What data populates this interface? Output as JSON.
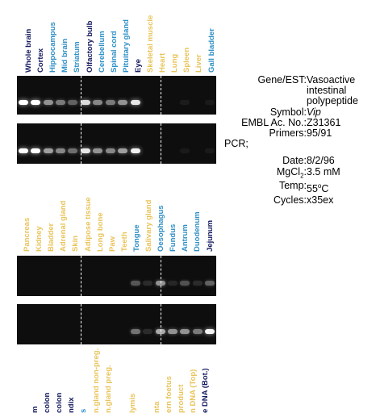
{
  "colors": {
    "dark_navy": "#141a5e",
    "teal": "#2d8fc6",
    "yellow": "#e9c45a",
    "green": "#37c455",
    "gel_bg": "#0e0e0e"
  },
  "top_lanes": [
    {
      "label": "Whole brain",
      "color": "#141a5e"
    },
    {
      "label": "Cortex",
      "color": "#141a5e"
    },
    {
      "label": "Hippocampus",
      "color": "#2d8fc6"
    },
    {
      "label": "Mid brain",
      "color": "#2d8fc6"
    },
    {
      "label": "Striatum",
      "color": "#2d8fc6"
    },
    {
      "label": "Olfactory bulb",
      "color": "#141a5e"
    },
    {
      "label": "Cerebellum",
      "color": "#2d8fc6"
    },
    {
      "label": "Spinal cord",
      "color": "#2d8fc6"
    },
    {
      "label": "Pituitary gland",
      "color": "#2d8fc6"
    },
    {
      "label": "Eye",
      "color": "#141a5e"
    },
    {
      "label": "Skeletal muscle",
      "color": "#e9c45a"
    },
    {
      "label": "Heart",
      "color": "#e9c45a"
    },
    {
      "label": "Lung",
      "color": "#e9c45a"
    },
    {
      "label": "Spleen",
      "color": "#e9c45a"
    },
    {
      "label": "Liver",
      "color": "#e9c45a"
    },
    {
      "label": "Gall bladder",
      "color": "#2d8fc6"
    }
  ],
  "middle_lanes": [
    {
      "label": "Pancreas",
      "color": "#e9c45a"
    },
    {
      "label": "Kidney",
      "color": "#e9c45a"
    },
    {
      "label": "Bladder",
      "color": "#e9c45a"
    },
    {
      "label": "Adrenal gland",
      "color": "#e9c45a"
    },
    {
      "label": "Skin",
      "color": "#e9c45a"
    },
    {
      "label": "Adipose tissue",
      "color": "#e9c45a"
    },
    {
      "label": "Long bone",
      "color": "#e9c45a"
    },
    {
      "label": "Paw",
      "color": "#e9c45a"
    },
    {
      "label": "Teeth",
      "color": "#e9c45a"
    },
    {
      "label": "Tongue",
      "color": "#2d8fc6"
    },
    {
      "label": "Salivary gland",
      "color": "#e9c45a"
    },
    {
      "label": "Oesophagus",
      "color": "#2d8fc6"
    },
    {
      "label": "Fundus",
      "color": "#2d8fc6"
    },
    {
      "label": "Antrum",
      "color": "#2d8fc6"
    },
    {
      "label": "Duodenum",
      "color": "#2d8fc6"
    },
    {
      "label": "Jejunum",
      "color": "#141a5e"
    }
  ],
  "bottom_lanes": [
    {
      "label": "m",
      "color": "#141a5e"
    },
    {
      "label": "colon",
      "color": "#141a5e"
    },
    {
      "label": "colon",
      "color": "#141a5e"
    },
    {
      "label": "ndix",
      "color": "#141a5e"
    },
    {
      "label": "s",
      "color": "#2d8fc6"
    },
    {
      "label": "n.gland non-preg.",
      "color": "#e9c45a"
    },
    {
      "label": "n.gland preg.",
      "color": "#e9c45a"
    },
    {
      "label": "",
      "color": "#e9c45a"
    },
    {
      "label": "lymis",
      "color": "#e9c45a"
    },
    {
      "label": "",
      "color": "#37c455"
    },
    {
      "label": "nta",
      "color": "#e9c45a"
    },
    {
      "label": "ern foetus",
      "color": "#e9c45a"
    },
    {
      "label": "product",
      "color": "#e9c45a"
    },
    {
      "label": "n DNA (Top)",
      "color": "#e9c45a"
    },
    {
      "label": "e DNA (Bot.)",
      "color": "#141a5e"
    }
  ],
  "gels": {
    "top1": [
      1.0,
      1.0,
      0.55,
      0.45,
      0.35,
      0.85,
      0.5,
      0.45,
      0.55,
      0.9,
      0,
      0,
      0,
      0.06,
      0,
      0.05
    ],
    "top2": [
      1.0,
      1.0,
      0.6,
      0.5,
      0.4,
      0.9,
      0.55,
      0.5,
      0.6,
      0.95,
      0,
      0,
      0,
      0.05,
      0,
      0.05
    ],
    "mid1": [
      0,
      0,
      0,
      0,
      0,
      0,
      0,
      0,
      0,
      0.3,
      0.12,
      0.55,
      0.1,
      0.28,
      0.12,
      0.35
    ],
    "mid2": [
      0,
      0,
      0,
      0,
      0,
      0,
      0,
      0,
      0,
      0.42,
      0.12,
      0.65,
      0.55,
      0.55,
      0.45,
      0.95
    ]
  },
  "info": {
    "gene_label": "Gene/EST:",
    "gene_value": [
      "Vasoactive",
      "intestinal",
      "polypeptide"
    ],
    "symbol_label": "Symbol:",
    "symbol_value": "Vip",
    "embl_label": "EMBL Ac. No.:",
    "embl_value": "Z31361",
    "primers_label": "Primers:",
    "primers_value": "95/91",
    "pcr_label": "PCR;",
    "date_label": "Date:",
    "date_value": "8/2/96",
    "mgcl_label": "MgCl",
    "mgcl_sub": "2",
    "mgcl_value": "3.5 mM",
    "temp_label": "Temp:",
    "temp_value": "55",
    "temp_unit": "C",
    "temp_sup": "o",
    "cycles_label": "Cycles:",
    "cycles_value": "x35ex"
  }
}
